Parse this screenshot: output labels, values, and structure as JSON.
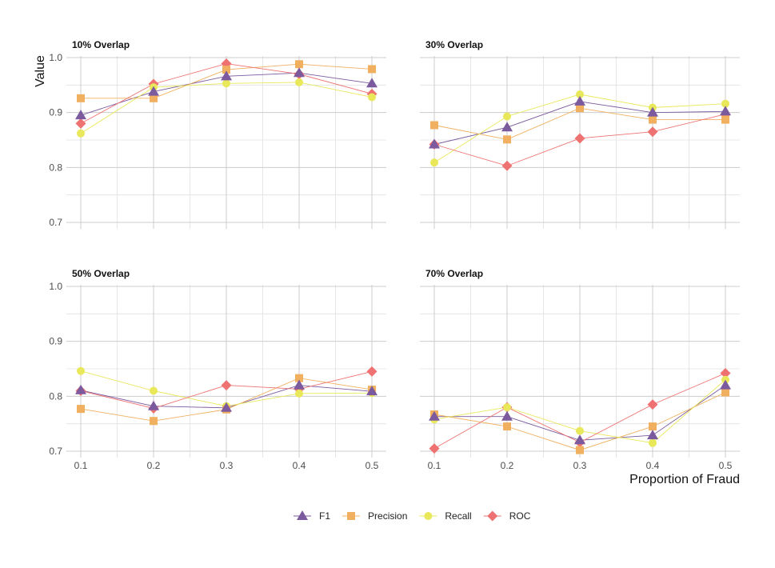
{
  "chart_data": {
    "type": "line",
    "ylabel": "Value",
    "xlabel": "Proportion of Fraud",
    "x": [
      0.1,
      0.2,
      0.3,
      0.4,
      0.5
    ],
    "x_tick_labels": [
      "0.1",
      "0.2",
      "0.3",
      "0.4",
      "0.5"
    ],
    "ylim": [
      0.7,
      1.0
    ],
    "y_ticks": [
      0.7,
      0.8,
      0.9,
      1.0
    ],
    "y_tick_labels": [
      "0.7",
      "0.8",
      "0.9",
      "1.0"
    ],
    "grid": true,
    "legend_position": "bottom",
    "series_styles": [
      {
        "name": "F1",
        "color": "#7b5a9e",
        "marker": "triangle"
      },
      {
        "name": "Precision",
        "color": "#f0b060",
        "marker": "square"
      },
      {
        "name": "Recall",
        "color": "#e8e85a",
        "marker": "circle"
      },
      {
        "name": "ROC",
        "color": "#ee7272",
        "marker": "diamond"
      }
    ],
    "panels": [
      {
        "title": "10% Overlap",
        "series": [
          {
            "name": "F1",
            "values": [
              0.895,
              0.938,
              0.966,
              0.972,
              0.953
            ]
          },
          {
            "name": "Precision",
            "values": [
              0.926,
              0.926,
              0.978,
              0.988,
              0.979
            ]
          },
          {
            "name": "Recall",
            "values": [
              0.862,
              0.946,
              0.953,
              0.955,
              0.928
            ]
          },
          {
            "name": "ROC",
            "values": [
              0.88,
              0.952,
              0.989,
              0.97,
              0.934
            ]
          }
        ]
      },
      {
        "title": "30% Overlap",
        "series": [
          {
            "name": "F1",
            "values": [
              0.842,
              0.873,
              0.92,
              0.9,
              0.902
            ]
          },
          {
            "name": "Precision",
            "values": [
              0.877,
              0.851,
              0.908,
              0.887,
              0.887
            ]
          },
          {
            "name": "Recall",
            "values": [
              0.809,
              0.893,
              0.933,
              0.909,
              0.916
            ]
          },
          {
            "name": "ROC",
            "values": [
              0.842,
              0.803,
              0.853,
              0.865,
              0.897
            ]
          }
        ]
      },
      {
        "title": "50% Overlap",
        "series": [
          {
            "name": "F1",
            "values": [
              0.811,
              0.782,
              0.779,
              0.82,
              0.809
            ]
          },
          {
            "name": "Precision",
            "values": [
              0.777,
              0.755,
              0.776,
              0.833,
              0.812
            ]
          },
          {
            "name": "Recall",
            "values": [
              0.846,
              0.81,
              0.782,
              0.805,
              0.806
            ]
          },
          {
            "name": "ROC",
            "values": [
              0.81,
              0.778,
              0.82,
              0.813,
              0.845
            ]
          }
        ]
      },
      {
        "title": "70% Overlap",
        "series": [
          {
            "name": "F1",
            "values": [
              0.763,
              0.763,
              0.72,
              0.729,
              0.82
            ]
          },
          {
            "name": "Precision",
            "values": [
              0.767,
              0.745,
              0.702,
              0.745,
              0.807
            ]
          },
          {
            "name": "Recall",
            "values": [
              0.758,
              0.78,
              0.737,
              0.715,
              0.83
            ]
          },
          {
            "name": "ROC",
            "values": [
              0.705,
              0.78,
              0.716,
              0.785,
              0.842
            ]
          }
        ]
      }
    ]
  }
}
